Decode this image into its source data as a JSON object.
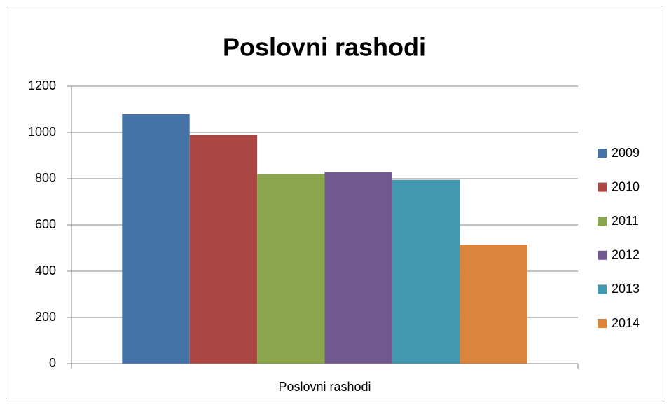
{
  "chart_data": {
    "type": "bar",
    "title": "Poslovni rashodi",
    "categories": [
      "Poslovni rashodi"
    ],
    "series": [
      {
        "name": "2009",
        "color": "#4572a7",
        "values": [
          1080
        ]
      },
      {
        "name": "2010",
        "color": "#aa4643",
        "values": [
          990
        ]
      },
      {
        "name": "2011",
        "color": "#89a54e",
        "values": [
          820
        ]
      },
      {
        "name": "2012",
        "color": "#71588f",
        "values": [
          830
        ]
      },
      {
        "name": "2013",
        "color": "#4198af",
        "values": [
          795
        ]
      },
      {
        "name": "2014",
        "color": "#db843d",
        "values": [
          515
        ]
      }
    ],
    "ylim": [
      0,
      1200
    ],
    "yticks": [
      0,
      200,
      400,
      600,
      800,
      1000,
      1200
    ],
    "grid": true,
    "legend": "right"
  }
}
